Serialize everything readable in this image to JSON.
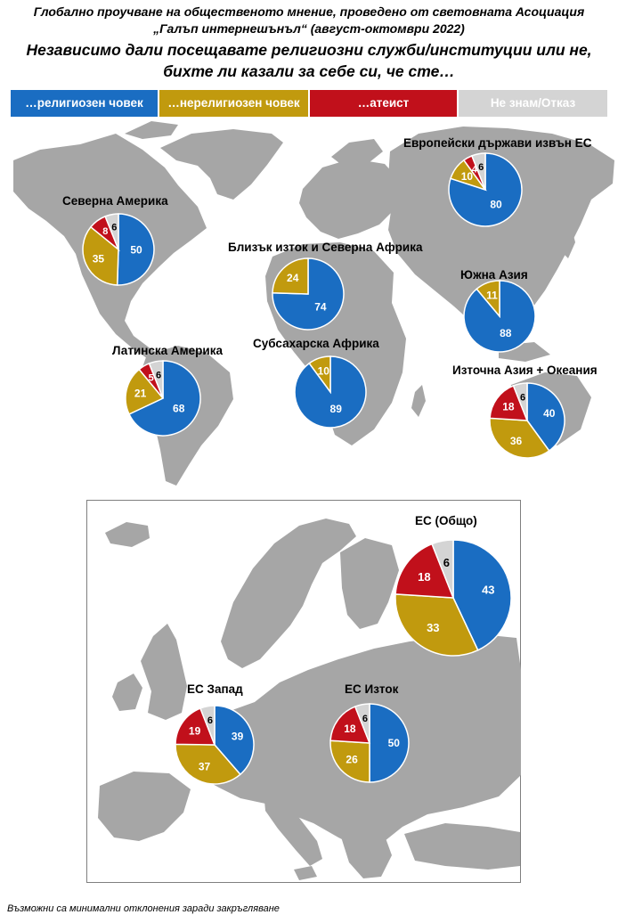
{
  "header": {
    "line1": "Глобално проучване на общественото мнение, проведено от световната Асоциация",
    "line2": "„Галъп интернешънъл“ (август-октомври 2022)",
    "question1": "Независимо дали посещавате религиозни служби/институции или не,",
    "question2": "бихте ли казали за себе си, че сте…"
  },
  "legend": [
    {
      "label": "…религиозен човек",
      "color": "#1a6dc2"
    },
    {
      "label": "…нерелигиозен човек",
      "color": "#c19a0e"
    },
    {
      "label": "…атеист",
      "color": "#c1101b"
    },
    {
      "label": "Не знам/Отказ",
      "color": "#d4d4d4"
    }
  ],
  "footnote": "Възможни са минимални отклонения заради закръгляване",
  "chart_data": [
    {
      "type": "pie",
      "title": "Северна Америка",
      "categories": [
        "…религиозен човек",
        "…нерелигиозен човек",
        "…атеист",
        "Не знам/Отказ"
      ],
      "values": [
        50,
        35,
        8,
        6
      ]
    },
    {
      "type": "pie",
      "title": "Латинска Америка",
      "categories": [
        "…религиозен човек",
        "…нерелигиозен човек",
        "…атеист",
        "Не знам/Отказ"
      ],
      "values": [
        68,
        21,
        5,
        6
      ]
    },
    {
      "type": "pie",
      "title": "Близък изток и Северна Африка",
      "categories": [
        "…религиозен човек",
        "…нерелигиозен човек",
        "…атеист",
        "Не знам/Отказ"
      ],
      "values": [
        74,
        24,
        null,
        null
      ]
    },
    {
      "type": "pie",
      "title": "Субсахарска Африка",
      "categories": [
        "…религиозен човек",
        "…нерелигиозен човек",
        "…атеист",
        "Не знам/Отказ"
      ],
      "values": [
        89,
        10,
        null,
        null
      ]
    },
    {
      "type": "pie",
      "title": "Европейски държави извън ЕС",
      "categories": [
        "…религиозен човек",
        "…нерелигиозен човек",
        "…атеист",
        "Не знам/Отказ"
      ],
      "values": [
        80,
        10,
        4,
        6
      ]
    },
    {
      "type": "pie",
      "title": "Южна Азия",
      "categories": [
        "…религиозен човек",
        "…нерелигиозен човек",
        "…атеист",
        "Не знам/Отказ"
      ],
      "values": [
        88,
        11,
        null,
        null
      ]
    },
    {
      "type": "pie",
      "title": "Източна Азия + Океания",
      "categories": [
        "…религиозен човек",
        "…нерелигиозен човек",
        "…атеист",
        "Не знам/Отказ"
      ],
      "values": [
        40,
        36,
        18,
        6
      ]
    },
    {
      "type": "pie",
      "title": "ЕС (Общо)",
      "categories": [
        "…религиозен човек",
        "…нерелигиозен човек",
        "…атеист",
        "Не знам/Отказ"
      ],
      "values": [
        43,
        33,
        18,
        6
      ]
    },
    {
      "type": "pie",
      "title": "ЕС Запад",
      "categories": [
        "…религиозен човек",
        "…нерелигиозен човек",
        "…атеист",
        "Не знам/Отказ"
      ],
      "values": [
        39,
        37,
        19,
        6
      ]
    },
    {
      "type": "pie",
      "title": "ЕС Изток",
      "categories": [
        "…религиозен човек",
        "…нерелигиозен човек",
        "…атеист",
        "Не знам/Отказ"
      ],
      "values": [
        50,
        26,
        18,
        6
      ]
    }
  ]
}
